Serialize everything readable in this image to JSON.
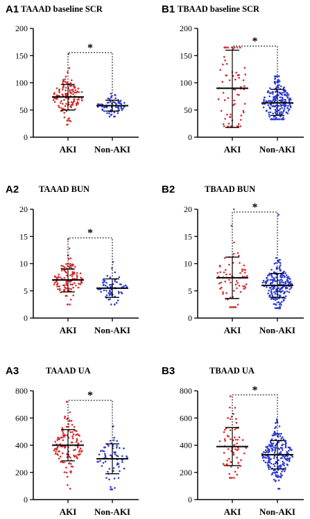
{
  "colors": {
    "aki": "#d62728",
    "non_aki": "#2c3bd0",
    "axis": "#000000"
  },
  "chart_data": [
    {
      "type": "scatter",
      "panel_label": "A1",
      "title": "TAAAD baseline SCR",
      "categories": [
        "AKI",
        "Non-AKI"
      ],
      "ylim": [
        0,
        200
      ],
      "yticks": [
        0,
        50,
        100,
        150,
        200
      ],
      "significance": "*",
      "series": [
        {
          "mean": 74,
          "sd_low": 50,
          "sd_high": 97,
          "min": 23,
          "max": 153,
          "n": 130
        },
        {
          "mean": 58,
          "sd_low": 48,
          "sd_high": 68,
          "min": 38,
          "max": 80,
          "n": 70
        }
      ]
    },
    {
      "type": "scatter",
      "panel_label": "B1",
      "title": "TBAAD baseline SCR",
      "categories": [
        "AKI",
        "Non-AKI"
      ],
      "ylim": [
        0,
        200
      ],
      "yticks": [
        0,
        50,
        100,
        150,
        200
      ],
      "significance": "*",
      "series": [
        {
          "mean": 90,
          "sd_low": 18,
          "sd_high": 160,
          "min": 20,
          "max": 165,
          "n": 70
        },
        {
          "mean": 63,
          "sd_low": 40,
          "sd_high": 88,
          "min": 33,
          "max": 112,
          "n": 220
        }
      ]
    },
    {
      "type": "scatter",
      "panel_label": "A2",
      "title": "TAAAD BUN",
      "categories": [
        "AKI",
        "Non-AKI"
      ],
      "ylim": [
        0,
        20
      ],
      "yticks": [
        0,
        5,
        10,
        15,
        20
      ],
      "significance": "*",
      "series": [
        {
          "mean": 7.0,
          "sd_low": 4.8,
          "sd_high": 9.0,
          "min": 2.5,
          "max": 14.5,
          "n": 130
        },
        {
          "mean": 5.5,
          "sd_low": 3.8,
          "sd_high": 7.2,
          "min": 2.5,
          "max": 10.3,
          "n": 70
        }
      ]
    },
    {
      "type": "scatter",
      "panel_label": "B2",
      "title": "TBAAD BUN",
      "categories": [
        "AKI",
        "Non-AKI"
      ],
      "ylim": [
        0,
        20
      ],
      "yticks": [
        0,
        5,
        10,
        15,
        20
      ],
      "significance": "*",
      "series": [
        {
          "mean": 7.4,
          "sd_low": 3.6,
          "sd_high": 11.2,
          "min": 2.0,
          "max": 20.0,
          "n": 70
        },
        {
          "mean": 6.0,
          "sd_low": 3.8,
          "sd_high": 8.2,
          "min": 1.8,
          "max": 19.0,
          "n": 220
        }
      ]
    },
    {
      "type": "scatter",
      "panel_label": "A3",
      "title": "TAAAD UA",
      "categories": [
        "AKI",
        "Non-AKI"
      ],
      "ylim": [
        0,
        800
      ],
      "yticks": [
        0,
        200,
        400,
        600,
        800
      ],
      "significance": "*",
      "series": [
        {
          "mean": 400,
          "sd_low": 285,
          "sd_high": 515,
          "min": 80,
          "max": 720,
          "n": 130
        },
        {
          "mean": 300,
          "sd_low": 190,
          "sd_high": 410,
          "min": 75,
          "max": 540,
          "n": 70
        }
      ]
    },
    {
      "type": "scatter",
      "panel_label": "B3",
      "title": "TBAAD UA",
      "categories": [
        "AKI",
        "Non-AKI"
      ],
      "ylim": [
        0,
        800
      ],
      "yticks": [
        0,
        200,
        400,
        600,
        800
      ],
      "significance": "*",
      "series": [
        {
          "mean": 390,
          "sd_low": 250,
          "sd_high": 530,
          "min": 160,
          "max": 760,
          "n": 70
        },
        {
          "mean": 330,
          "sd_low": 225,
          "sd_high": 435,
          "min": 80,
          "max": 590,
          "n": 220
        }
      ]
    }
  ]
}
